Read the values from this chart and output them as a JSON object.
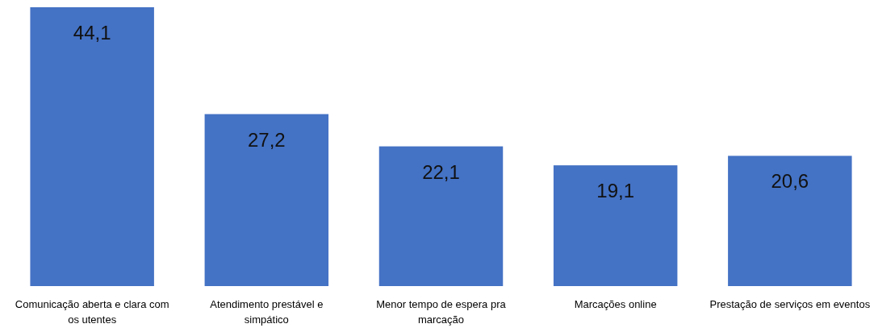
{
  "chart_data": {
    "type": "bar",
    "categories": [
      "Comunicação aberta e clara com os utentes",
      "Atendimento prestável e simpático",
      "Menor tempo de espera pra marcação",
      "Marcações online",
      "Prestação de serviços em eventos"
    ],
    "values": [
      44.1,
      27.2,
      22.1,
      19.1,
      20.6
    ],
    "value_labels": [
      "44,1",
      "27,2",
      "22,1",
      "19,1",
      "20,6"
    ],
    "color": "#4472c4"
  }
}
